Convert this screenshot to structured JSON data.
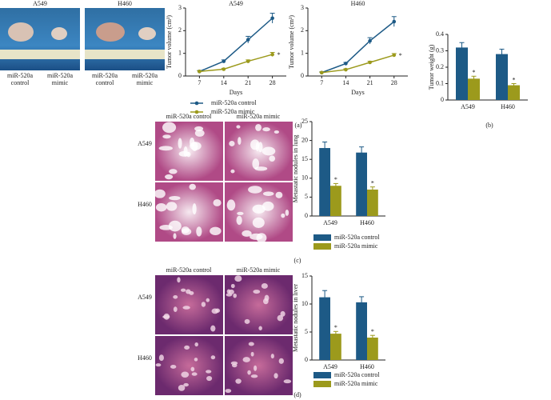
{
  "photo_panel": {
    "columns": [
      "A549",
      "H460"
    ],
    "labels": [
      "miR-520a control",
      "miR-520a mimic"
    ]
  },
  "histology": [
    {
      "columns": [
        "miR-520a control",
        "miR-520a mimic"
      ],
      "rows": [
        "A549",
        "H460"
      ]
    },
    {
      "columns": [
        "miR-520a control",
        "miR-520a mimic"
      ],
      "rows": [
        "A549",
        "H460"
      ]
    }
  ],
  "panel_labels": [
    "(a)",
    "(b)",
    "(c)",
    "(d)"
  ],
  "chart_data": [
    {
      "type": "line",
      "title": "A549",
      "xlabel": "Days",
      "ylabel": "Tumor volume (cm³)",
      "x": [
        7,
        14,
        21,
        28
      ],
      "xlim": [
        3,
        32
      ],
      "xticks": [
        7,
        14,
        21,
        28
      ],
      "ylim": [
        0,
        3
      ],
      "yticks": [
        0,
        1,
        2,
        3
      ],
      "legend": "bottom",
      "annotation": "*",
      "series": [
        {
          "name": "miR-520a control",
          "color": "#1d5a86",
          "values": [
            0.2,
            0.65,
            1.6,
            2.55
          ],
          "errors": [
            0.04,
            0.06,
            0.15,
            0.22
          ]
        },
        {
          "name": "miR-520a mimic",
          "color": "#9c9a1c",
          "values": [
            0.2,
            0.3,
            0.65,
            0.95
          ],
          "errors": [
            0.03,
            0.04,
            0.06,
            0.09
          ]
        }
      ]
    },
    {
      "type": "line",
      "title": "H460",
      "xlabel": "Days",
      "ylabel": "Tumor volume (cm³)",
      "x": [
        7,
        14,
        21,
        28
      ],
      "xlim": [
        3,
        32
      ],
      "xticks": [
        7,
        14,
        21,
        28
      ],
      "ylim": [
        0,
        3
      ],
      "yticks": [
        0,
        1,
        2,
        3
      ],
      "annotation": "*",
      "series": [
        {
          "name": "miR-520a control",
          "color": "#1d5a86",
          "values": [
            0.15,
            0.55,
            1.55,
            2.4
          ],
          "errors": [
            0.03,
            0.05,
            0.14,
            0.22
          ]
        },
        {
          "name": "miR-520a mimic",
          "color": "#9c9a1c",
          "values": [
            0.15,
            0.28,
            0.6,
            0.92
          ],
          "errors": [
            0.02,
            0.04,
            0.05,
            0.07
          ]
        }
      ]
    },
    {
      "type": "bar",
      "ylabel": "Tumor weight (g)",
      "categories": [
        "A549",
        "H460"
      ],
      "ylim": [
        0,
        0.4
      ],
      "yticks": [
        0,
        0.1,
        0.2,
        0.3,
        0.4
      ],
      "annotation": "*",
      "series": [
        {
          "name": "miR-520a control",
          "color": "#1d5a86",
          "values": [
            0.32,
            0.28
          ],
          "errors": [
            0.03,
            0.03
          ]
        },
        {
          "name": "miR-520a mimic",
          "color": "#9c9a1c",
          "values": [
            0.13,
            0.09
          ],
          "errors": [
            0.015,
            0.01
          ]
        }
      ]
    },
    {
      "type": "bar",
      "ylabel": "Metastatic nodules in lung",
      "categories": [
        "A549",
        "H460"
      ],
      "ylim": [
        0,
        25
      ],
      "yticks": [
        0,
        5,
        10,
        15,
        20,
        25
      ],
      "legend": "bottom",
      "annotation": "*",
      "series": [
        {
          "name": "miR-520a control",
          "color": "#1d5a86",
          "values": [
            18,
            16.8
          ],
          "errors": [
            1.6,
            1.5
          ]
        },
        {
          "name": "miR-520a mimic",
          "color": "#9c9a1c",
          "values": [
            8,
            7
          ],
          "errors": [
            0.6,
            0.7
          ]
        }
      ]
    },
    {
      "type": "bar",
      "ylabel": "Metastatic nodules in liver",
      "categories": [
        "A549",
        "H460"
      ],
      "ylim": [
        0,
        15
      ],
      "yticks": [
        0,
        5,
        10,
        15
      ],
      "legend": "bottom",
      "annotation": "*",
      "series": [
        {
          "name": "miR-520a control",
          "color": "#1d5a86",
          "values": [
            11.2,
            10.3
          ],
          "errors": [
            1.2,
            1.0
          ]
        },
        {
          "name": "miR-520a mimic",
          "color": "#9c9a1c",
          "values": [
            4.7,
            4.0
          ],
          "errors": [
            0.4,
            0.4
          ]
        }
      ]
    }
  ]
}
